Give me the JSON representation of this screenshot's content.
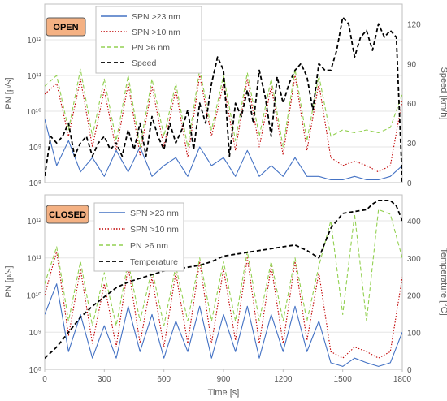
{
  "chart_data": [
    {
      "type": "line",
      "panel_label": "OPEN",
      "ylabel": "PN [p/s]",
      "y2label": "Speed [km/h]",
      "yscale": "log",
      "ylim": [
        100000000,
        10000000000000
      ],
      "y2lim": [
        0,
        135
      ],
      "yticks": [
        "10⁸",
        "10⁹",
        "10¹⁰",
        "10¹¹",
        "10¹²"
      ],
      "y2ticks": [
        "0",
        "30",
        "60",
        "90",
        "120"
      ],
      "legend_position": "top-left",
      "series": [
        {
          "name": "SPN >23 nm",
          "axis": "left",
          "color": "#4472c4",
          "style": "solid",
          "x": [
            0,
            60,
            120,
            180,
            240,
            300,
            360,
            420,
            480,
            540,
            600,
            660,
            720,
            780,
            840,
            900,
            960,
            1020,
            1080,
            1140,
            1200,
            1260,
            1320,
            1380,
            1440,
            1500,
            1560,
            1620,
            1680,
            1740,
            1800
          ],
          "values": [
            6000000000,
            300000000,
            1500000000,
            200000000,
            500000000,
            150000000,
            800000000,
            200000000,
            1000000000,
            150000000,
            300000000,
            500000000,
            150000000,
            1000000000,
            300000000,
            500000000,
            150000000,
            800000000,
            150000000,
            300000000,
            150000000,
            500000000,
            150000000,
            150000000,
            120000000,
            120000000,
            150000000,
            120000000,
            120000000,
            150000000,
            300000000
          ]
        },
        {
          "name": "SPN >10 nm",
          "axis": "left",
          "color": "#c00000",
          "style": "dotted",
          "x": [
            0,
            60,
            120,
            180,
            240,
            300,
            360,
            420,
            480,
            540,
            600,
            660,
            720,
            780,
            840,
            900,
            960,
            1020,
            1080,
            1140,
            1200,
            1260,
            1320,
            1380,
            1440,
            1500,
            1560,
            1620,
            1680,
            1740,
            1800
          ],
          "values": [
            30000000000,
            60000000000,
            2000000000,
            80000000000,
            1000000000,
            40000000000,
            800000000,
            60000000000,
            600000000,
            50000000000,
            1000000000,
            40000000000,
            500000000,
            100000000000,
            2000000000,
            60000000000,
            800000000,
            80000000000,
            1000000000,
            50000000000,
            600000000,
            100000000000,
            800000000,
            60000000000,
            500000000,
            300000000,
            400000000,
            300000000,
            200000000,
            300000000,
            20000000000
          ]
        },
        {
          "name": "PN >6 nm",
          "axis": "left",
          "color": "#92d050",
          "style": "dashed",
          "x": [
            0,
            60,
            120,
            180,
            240,
            300,
            360,
            420,
            480,
            540,
            600,
            660,
            720,
            780,
            840,
            900,
            960,
            1020,
            1080,
            1140,
            1200,
            1260,
            1320,
            1380,
            1440,
            1500,
            1560,
            1620,
            1680,
            1740,
            1800
          ],
          "values": [
            50000000000,
            100000000000,
            3000000000,
            150000000000,
            2000000000,
            80000000000,
            1500000000,
            100000000000,
            1000000000,
            80000000000,
            2000000000,
            60000000000,
            1000000000,
            150000000000,
            3000000000,
            100000000000,
            1500000000,
            120000000000,
            2000000000,
            80000000000,
            1000000000,
            150000000000,
            1500000000,
            100000000000,
            2000000000,
            3000000000,
            2500000000,
            3000000000,
            2500000000,
            3500000000,
            30000000000
          ]
        },
        {
          "name": "Speed",
          "axis": "right",
          "color": "#000000",
          "style": "dashed",
          "x": [
            0,
            30,
            60,
            90,
            120,
            150,
            180,
            210,
            240,
            270,
            300,
            330,
            360,
            390,
            420,
            450,
            480,
            510,
            540,
            570,
            600,
            630,
            660,
            690,
            720,
            750,
            780,
            810,
            840,
            870,
            900,
            930,
            960,
            990,
            1020,
            1050,
            1080,
            1110,
            1140,
            1170,
            1200,
            1230,
            1260,
            1290,
            1320,
            1350,
            1380,
            1410,
            1440,
            1470,
            1500,
            1530,
            1560,
            1590,
            1620,
            1650,
            1680,
            1710,
            1740,
            1770,
            1800
          ],
          "values": [
            5,
            35,
            30,
            35,
            45,
            20,
            30,
            35,
            20,
            30,
            35,
            25,
            30,
            20,
            40,
            25,
            45,
            20,
            50,
            35,
            25,
            45,
            30,
            40,
            55,
            25,
            60,
            45,
            75,
            95,
            85,
            20,
            60,
            50,
            70,
            45,
            85,
            65,
            35,
            80,
            60,
            75,
            85,
            90,
            80,
            55,
            90,
            85,
            85,
            100,
            125,
            120,
            95,
            110,
            115,
            100,
            120,
            110,
            115,
            110,
            0
          ]
        }
      ]
    },
    {
      "type": "line",
      "panel_label": "CLOSED",
      "ylabel": "PN [p/s]",
      "y2label": "Temperature [°C]",
      "xlabel": "Time [s]",
      "yscale": "log",
      "ylim": [
        100000000,
        5000000000000
      ],
      "y2lim": [
        0,
        470
      ],
      "yticks": [
        "10⁸",
        "10⁹",
        "10¹⁰",
        "10¹¹",
        "10¹²"
      ],
      "y2ticks": [
        "0",
        "100",
        "200",
        "300",
        "400"
      ],
      "xlim": [
        0,
        1800
      ],
      "xticks": [
        "0",
        "300",
        "600",
        "900",
        "1200",
        "1500",
        "1800"
      ],
      "legend_position": "top-left",
      "series": [
        {
          "name": "SPN >23 nm",
          "axis": "left",
          "color": "#4472c4",
          "style": "solid",
          "x": [
            0,
            60,
            120,
            180,
            240,
            300,
            360,
            420,
            480,
            540,
            600,
            660,
            720,
            780,
            840,
            900,
            960,
            1020,
            1080,
            1140,
            1200,
            1260,
            1320,
            1380,
            1440,
            1500,
            1560,
            1620,
            1680,
            1740,
            1800
          ],
          "values": [
            3000000000,
            20000000000,
            300000000,
            3000000000,
            200000000,
            1500000000,
            200000000,
            5000000000,
            300000000,
            3000000000,
            200000000,
            2000000000,
            300000000,
            5000000000,
            200000000,
            3000000000,
            300000000,
            5000000000,
            200000000,
            3000000000,
            300000000,
            5000000000,
            300000000,
            2000000000,
            150000000,
            120000000,
            200000000,
            150000000,
            120000000,
            150000000,
            1000000000
          ]
        },
        {
          "name": "SPN >10 nm",
          "axis": "left",
          "color": "#c00000",
          "style": "dotted",
          "x": [
            0,
            60,
            120,
            180,
            240,
            300,
            360,
            420,
            480,
            540,
            600,
            660,
            720,
            780,
            840,
            900,
            960,
            1020,
            1080,
            1140,
            1200,
            1260,
            1320,
            1380,
            1440,
            1500,
            1560,
            1620,
            1680,
            1740,
            1800
          ],
          "values": [
            10000000000,
            150000000000,
            800000000,
            50000000000,
            500000000,
            20000000000,
            400000000,
            60000000000,
            500000000,
            30000000000,
            400000000,
            40000000000,
            500000000,
            80000000000,
            500000000,
            50000000000,
            600000000,
            100000000000,
            500000000,
            60000000000,
            500000000,
            80000000000,
            600000000,
            40000000000,
            300000000,
            200000000,
            400000000,
            300000000,
            200000000,
            300000000,
            30000000000
          ]
        },
        {
          "name": "PN >6 nm",
          "axis": "left",
          "color": "#92d050",
          "style": "dashed",
          "x": [
            0,
            60,
            120,
            180,
            240,
            300,
            360,
            420,
            480,
            540,
            600,
            660,
            720,
            780,
            840,
            900,
            960,
            1020,
            1080,
            1140,
            1200,
            1260,
            1320,
            1380,
            1440,
            1500,
            1560,
            1620,
            1680,
            1740,
            1800
          ],
          "values": [
            20000000000,
            200000000000,
            2000000000,
            80000000000,
            1500000000,
            40000000000,
            1500000000,
            80000000000,
            2000000000,
            50000000000,
            1500000000,
            60000000000,
            2000000000,
            100000000000,
            2000000000,
            80000000000,
            2000000000,
            150000000000,
            2000000000,
            80000000000,
            2000000000,
            100000000000,
            2000000000,
            60000000000,
            1000000000000,
            3000000000,
            1500000000000,
            2000000000,
            2000000000000,
            1500000000000,
            100000000000
          ]
        },
        {
          "name": "Temperature",
          "axis": "right",
          "color": "#000000",
          "style": "dashed",
          "x": [
            0,
            60,
            120,
            180,
            240,
            300,
            360,
            420,
            480,
            540,
            600,
            660,
            720,
            780,
            840,
            900,
            960,
            1020,
            1080,
            1140,
            1200,
            1260,
            1320,
            1380,
            1440,
            1470,
            1500,
            1560,
            1620,
            1650,
            1680,
            1740,
            1770,
            1800
          ],
          "values": [
            30,
            60,
            100,
            140,
            170,
            195,
            220,
            235,
            245,
            255,
            265,
            270,
            275,
            280,
            290,
            305,
            310,
            315,
            320,
            325,
            330,
            335,
            320,
            300,
            380,
            400,
            420,
            425,
            430,
            445,
            455,
            455,
            440,
            400
          ]
        }
      ]
    }
  ]
}
